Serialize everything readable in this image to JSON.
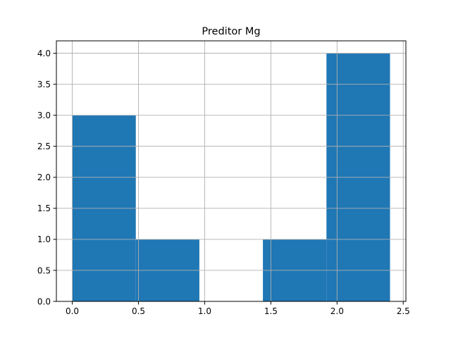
{
  "chart_data": {
    "type": "bar",
    "title": "Preditor Mg",
    "xlabel": "",
    "ylabel": "",
    "bins": [
      {
        "start": 0.0,
        "end": 0.48,
        "count": 3
      },
      {
        "start": 0.48,
        "end": 0.96,
        "count": 1
      },
      {
        "start": 0.96,
        "end": 1.44,
        "count": 0
      },
      {
        "start": 1.44,
        "end": 1.92,
        "count": 1
      },
      {
        "start": 1.92,
        "end": 2.4,
        "count": 4
      }
    ],
    "xlim": [
      -0.12,
      2.52
    ],
    "ylim": [
      0,
      4.2
    ],
    "x_ticks": [
      0.0,
      0.5,
      1.0,
      1.5,
      2.0,
      2.5
    ],
    "x_tick_labels": [
      "0.0",
      "0.5",
      "1.0",
      "1.5",
      "2.0",
      "2.5"
    ],
    "y_ticks": [
      0.0,
      0.5,
      1.0,
      1.5,
      2.0,
      2.5,
      3.0,
      3.5,
      4.0
    ],
    "y_tick_labels": [
      "0.0",
      "0.5",
      "1.0",
      "1.5",
      "2.0",
      "2.5",
      "3.0",
      "3.5",
      "4.0"
    ],
    "grid": true,
    "bar_color": "#1f77b4"
  }
}
